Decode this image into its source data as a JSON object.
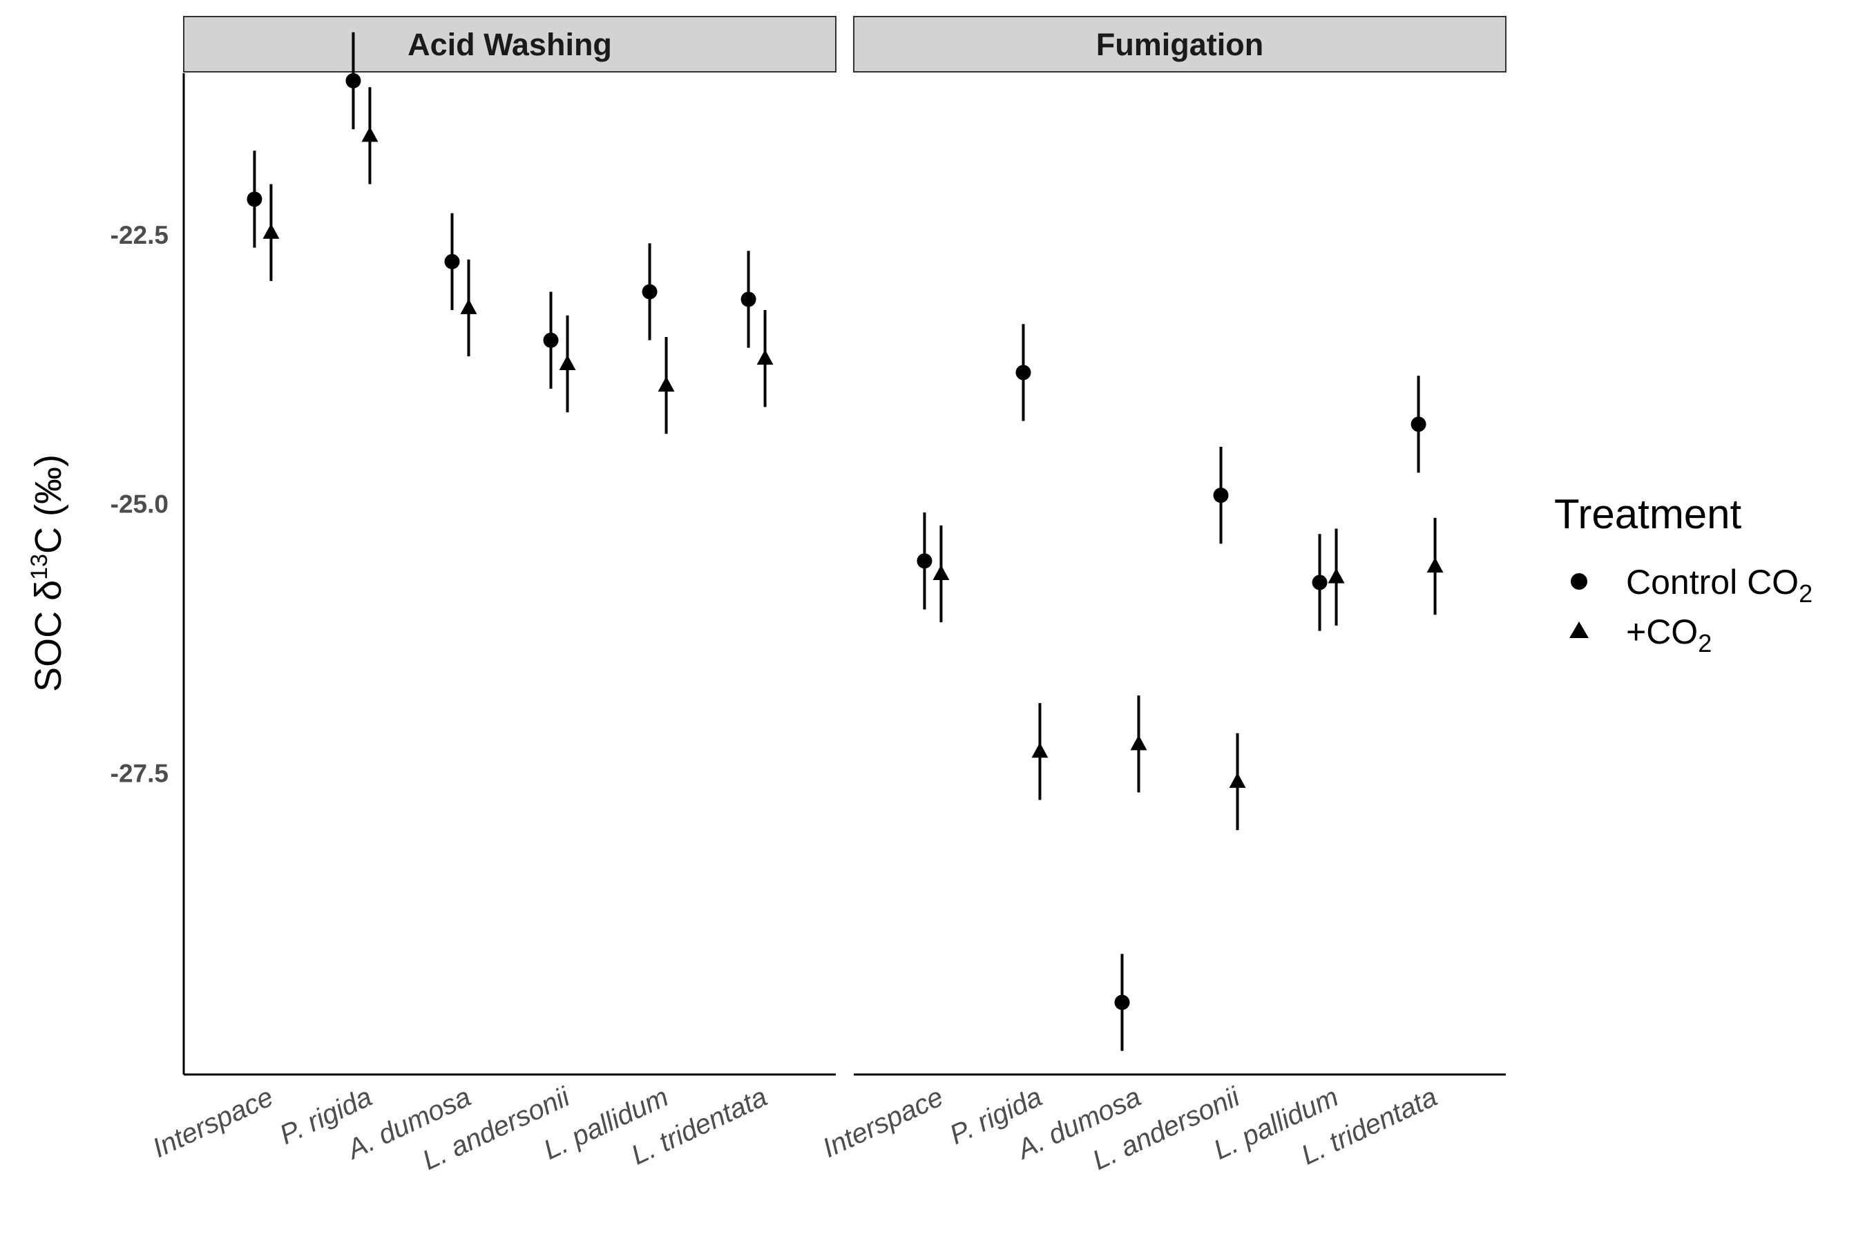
{
  "chart_data": {
    "type": "scatter",
    "subtype": "point-range (mean with error bars), faceted",
    "ylabel": {
      "base": "SOC δ",
      "sup": "13",
      "tail": "C (‰)"
    },
    "ylim": [
      -30.3,
      -21.0
    ],
    "yticks": [
      -22.5,
      -25.0,
      -27.5
    ],
    "ytick_labels": [
      "-22.5",
      "-25.0",
      "-27.5"
    ],
    "grid": false,
    "categories": [
      "Interspace",
      "P. rigida",
      "A. dumosa",
      "L. andersonii",
      "L. pallidum",
      "L. tridentata"
    ],
    "legend": {
      "title": "Treatment",
      "placement": "right",
      "entries": [
        {
          "series": "control",
          "shape": "circle",
          "label": "Control CO",
          "sub": "2"
        },
        {
          "series": "elevated",
          "shape": "triangle",
          "label": "+CO",
          "sub": "2"
        }
      ]
    },
    "color": "#000000",
    "facets": [
      {
        "title": "Acid Washing",
        "series": [
          {
            "key": "control",
            "mean": [
              -22.17,
              -21.07,
              -22.75,
              -23.48,
              -23.03,
              -23.1
            ],
            "lower": [
              -22.62,
              -21.52,
              -23.2,
              -23.93,
              -23.48,
              -23.55
            ],
            "upper": [
              -21.72,
              -20.62,
              -22.3,
              -23.03,
              -22.58,
              -22.65
            ]
          },
          {
            "key": "elevated",
            "mean": [
              -22.48,
              -21.58,
              -23.18,
              -23.7,
              -23.9,
              -23.65
            ],
            "lower": [
              -22.93,
              -22.03,
              -23.63,
              -24.15,
              -24.35,
              -24.1
            ],
            "upper": [
              -22.03,
              -21.13,
              -22.73,
              -23.25,
              -23.45,
              -23.2
            ]
          }
        ]
      },
      {
        "title": "Fumigation",
        "series": [
          {
            "key": "control",
            "mean": [
              -25.53,
              -23.78,
              -29.63,
              -24.92,
              -25.73,
              -24.26
            ],
            "lower": [
              -25.98,
              -24.23,
              -30.08,
              -25.37,
              -26.18,
              -24.71
            ],
            "upper": [
              -25.08,
              -23.33,
              -29.18,
              -24.47,
              -25.28,
              -23.81
            ]
          },
          {
            "key": "elevated",
            "mean": [
              -25.65,
              -27.3,
              -27.23,
              -27.58,
              -25.68,
              -25.58
            ],
            "lower": [
              -26.1,
              -27.75,
              -27.68,
              -28.03,
              -26.13,
              -26.03
            ],
            "upper": [
              -25.2,
              -26.85,
              -26.78,
              -27.13,
              -25.23,
              -25.13
            ]
          }
        ]
      }
    ]
  }
}
